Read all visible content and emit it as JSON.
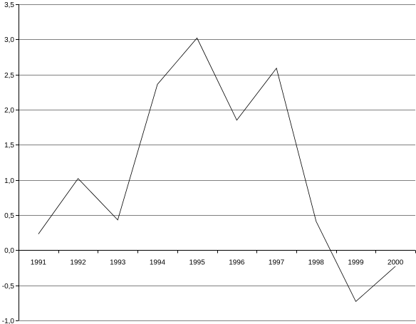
{
  "chart_data": {
    "type": "line",
    "title": "",
    "xlabel": "",
    "ylabel": "",
    "categories": [
      "1991",
      "1992",
      "1993",
      "1994",
      "1995",
      "1996",
      "1997",
      "1998",
      "1999",
      "2000"
    ],
    "series": [
      {
        "values": [
          0.23,
          1.02,
          0.43,
          2.36,
          3.02,
          1.85,
          2.59,
          0.41,
          -0.73,
          -0.23
        ]
      }
    ],
    "ylim": [
      -1.0,
      3.5
    ],
    "yticks": [
      3.5,
      3.0,
      2.5,
      2.0,
      1.5,
      1.0,
      0.5,
      0.0,
      -0.5,
      -1.0
    ],
    "ytick_labels": [
      "3,5",
      "3,0",
      "2,5",
      "2,0",
      "1,5",
      "1,0",
      "0,5",
      "0,0",
      "-0,5",
      "-1,0"
    ],
    "grid": true,
    "legend": "none",
    "line_color": "#000000",
    "grid_color": "#808080"
  }
}
